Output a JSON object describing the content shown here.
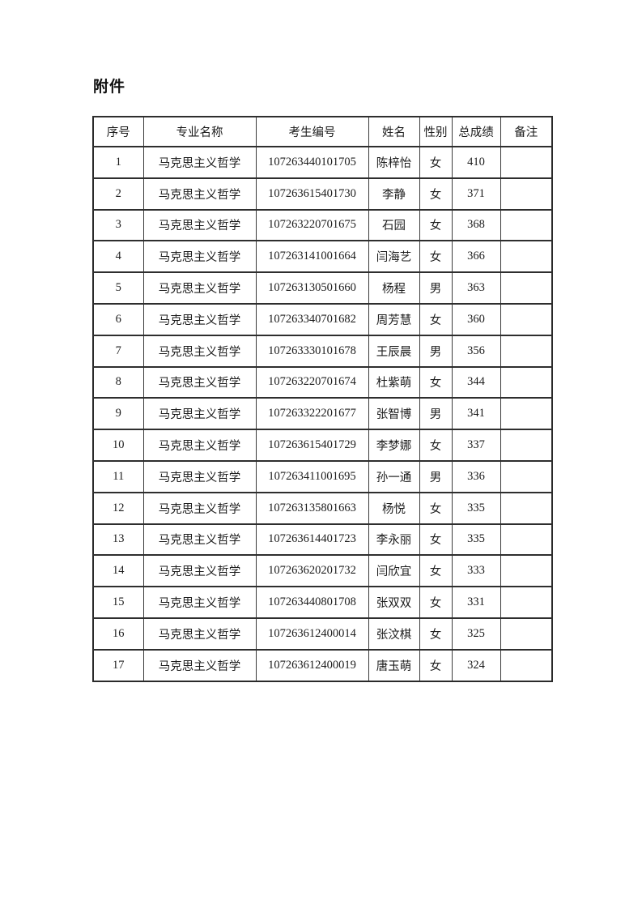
{
  "page": {
    "title": "附件"
  },
  "table": {
    "columns": [
      "序号",
      "专业名称",
      "考生编号",
      "姓名",
      "性别",
      "总成绩",
      "备注"
    ],
    "rows": [
      [
        "1",
        "马克思主义哲学",
        "107263440101705",
        "陈梓怡",
        "女",
        "410",
        ""
      ],
      [
        "2",
        "马克思主义哲学",
        "107263615401730",
        "李静",
        "女",
        "371",
        ""
      ],
      [
        "3",
        "马克思主义哲学",
        "107263220701675",
        "石园",
        "女",
        "368",
        ""
      ],
      [
        "4",
        "马克思主义哲学",
        "107263141001664",
        "闫海艺",
        "女",
        "366",
        ""
      ],
      [
        "5",
        "马克思主义哲学",
        "107263130501660",
        "杨程",
        "男",
        "363",
        ""
      ],
      [
        "6",
        "马克思主义哲学",
        "107263340701682",
        "周芳慧",
        "女",
        "360",
        ""
      ],
      [
        "7",
        "马克思主义哲学",
        "107263330101678",
        "王辰晨",
        "男",
        "356",
        ""
      ],
      [
        "8",
        "马克思主义哲学",
        "107263220701674",
        "杜紫萌",
        "女",
        "344",
        ""
      ],
      [
        "9",
        "马克思主义哲学",
        "107263322201677",
        "张智博",
        "男",
        "341",
        ""
      ],
      [
        "10",
        "马克思主义哲学",
        "107263615401729",
        "李梦娜",
        "女",
        "337",
        ""
      ],
      [
        "11",
        "马克思主义哲学",
        "107263411001695",
        "孙一通",
        "男",
        "336",
        ""
      ],
      [
        "12",
        "马克思主义哲学",
        "107263135801663",
        "杨悦",
        "女",
        "335",
        ""
      ],
      [
        "13",
        "马克思主义哲学",
        "107263614401723",
        "李永丽",
        "女",
        "335",
        ""
      ],
      [
        "14",
        "马克思主义哲学",
        "107263620201732",
        "闫欣宜",
        "女",
        "333",
        ""
      ],
      [
        "15",
        "马克思主义哲学",
        "107263440801708",
        "张双双",
        "女",
        "331",
        ""
      ],
      [
        "16",
        "马克思主义哲学",
        "107263612400014",
        "张汶棋",
        "女",
        "325",
        ""
      ],
      [
        "17",
        "马克思主义哲学",
        "107263612400019",
        "唐玉萌",
        "女",
        "324",
        ""
      ]
    ]
  }
}
